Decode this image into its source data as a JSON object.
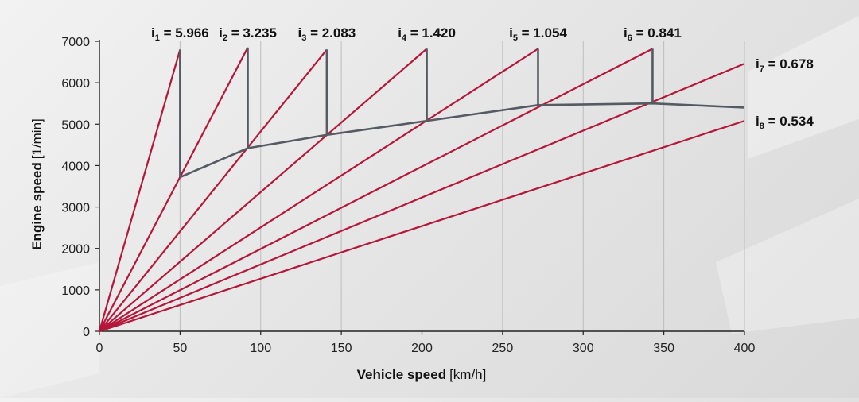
{
  "chart_data": {
    "type": "line",
    "title": "",
    "xlabel": "Vehicle speed",
    "xlabel_unit": "[km/h]",
    "ylabel": "Engine speed",
    "ylabel_unit": "[1/min]",
    "xlim": [
      0,
      400
    ],
    "ylim": [
      0,
      7000
    ],
    "x_ticks": [
      0,
      50,
      100,
      150,
      200,
      250,
      300,
      350,
      400
    ],
    "y_ticks": [
      0,
      1000,
      2000,
      3000,
      4000,
      5000,
      6000,
      7000
    ],
    "grid": "vertical",
    "gear_color": "#b5173a",
    "shift_color": "#555a63",
    "gears": [
      {
        "index": "1",
        "ratio": "5.966",
        "line_x": [
          0,
          50
        ],
        "line_y": [
          0,
          6800
        ]
      },
      {
        "index": "2",
        "ratio": "3.235",
        "line_x": [
          0,
          92
        ],
        "line_y": [
          0,
          6850
        ]
      },
      {
        "index": "3",
        "ratio": "2.083",
        "line_x": [
          0,
          141
        ],
        "line_y": [
          0,
          6800
        ]
      },
      {
        "index": "4",
        "ratio": "1.420",
        "line_x": [
          0,
          203
        ],
        "line_y": [
          0,
          6820
        ]
      },
      {
        "index": "5",
        "ratio": "1.054",
        "line_x": [
          0,
          272
        ],
        "line_y": [
          0,
          6820
        ]
      },
      {
        "index": "6",
        "ratio": "0.841",
        "line_x": [
          0,
          343
        ],
        "line_y": [
          0,
          6820
        ]
      },
      {
        "index": "7",
        "ratio": "0.678",
        "line_x": [
          0,
          400
        ],
        "line_y": [
          0,
          6460
        ]
      },
      {
        "index": "8",
        "ratio": "0.534",
        "line_x": [
          0,
          400
        ],
        "line_y": [
          0,
          5080
        ]
      }
    ],
    "shift_drops": [
      {
        "x": 50,
        "y_from": 6800,
        "y_to": 3720
      },
      {
        "x": 92,
        "y_from": 6850,
        "y_to": 4420
      },
      {
        "x": 141,
        "y_from": 6800,
        "y_to": 4740
      },
      {
        "x": 203,
        "y_from": 6820,
        "y_to": 5080
      },
      {
        "x": 272,
        "y_from": 6820,
        "y_to": 5460
      },
      {
        "x": 343,
        "y_from": 6820,
        "y_to": 5500
      }
    ],
    "envelope": {
      "x": [
        50,
        92,
        141,
        203,
        272,
        343,
        400
      ],
      "y": [
        3720,
        4420,
        4740,
        5080,
        5460,
        5500,
        5400
      ]
    }
  }
}
